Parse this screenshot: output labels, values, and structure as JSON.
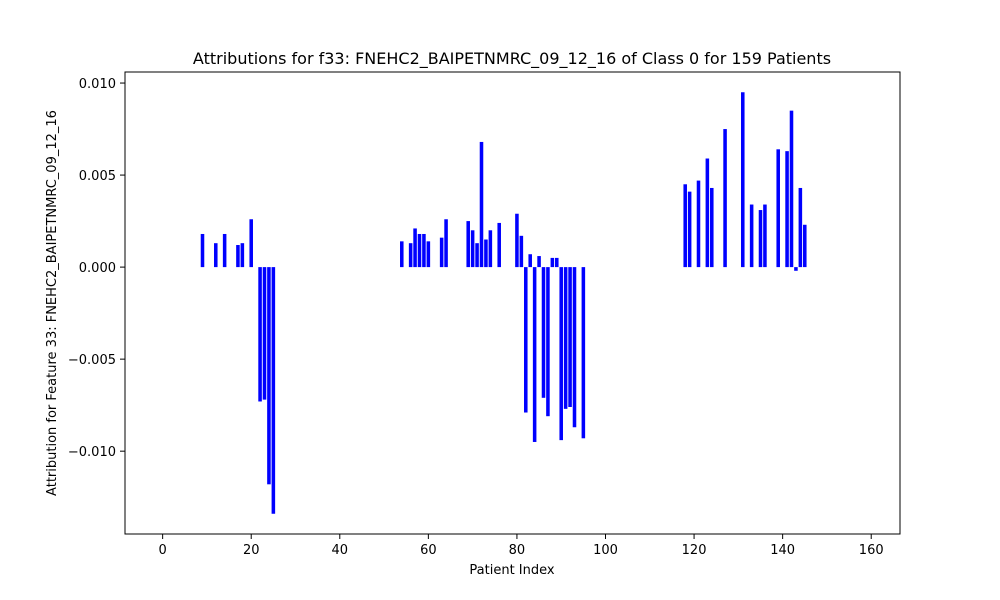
{
  "chart_data": {
    "type": "bar",
    "title": "Attributions for f33: FNEHC2_BAIPETNMRC_09_12_16 of Class 0 for 159 Patients",
    "xlabel": "Patient Index",
    "ylabel": "Attribution for Feature 33: FNEHC2_BAIPETNMRC_09_12_16",
    "xlim": [
      -8.5,
      166.5
    ],
    "ylim": [
      -0.0145,
      0.0106
    ],
    "xticks": [
      0,
      20,
      40,
      60,
      80,
      100,
      120,
      140,
      160
    ],
    "yticks": [
      -0.01,
      -0.005,
      0.0,
      0.005,
      0.01
    ],
    "ytick_labels": [
      "−0.010",
      "−0.005",
      "0.000",
      "0.005",
      "0.010"
    ],
    "grid": false,
    "bar_color": "#0000ff",
    "x": [
      9,
      12,
      14,
      17,
      18,
      20,
      22,
      23,
      24,
      25,
      54,
      56,
      57,
      58,
      59,
      60,
      63,
      64,
      69,
      70,
      71,
      72,
      73,
      74,
      76,
      80,
      81,
      82,
      83,
      84,
      85,
      86,
      87,
      88,
      89,
      90,
      91,
      92,
      93,
      95,
      118,
      119,
      121,
      123,
      124,
      127,
      131,
      133,
      135,
      136,
      139,
      141,
      142,
      143,
      144,
      145
    ],
    "values": [
      0.0018,
      0.0013,
      0.0018,
      0.0012,
      0.0013,
      0.0026,
      -0.0073,
      -0.0072,
      -0.0118,
      -0.0134,
      0.0014,
      0.0013,
      0.0021,
      0.0018,
      0.0018,
      0.0014,
      0.0016,
      0.0026,
      0.0025,
      0.002,
      0.0013,
      0.0068,
      0.0015,
      0.002,
      0.0024,
      0.0029,
      0.0017,
      -0.0079,
      0.0007,
      -0.0095,
      0.0006,
      -0.0071,
      -0.0081,
      0.0005,
      0.0005,
      -0.0094,
      -0.0077,
      -0.0076,
      -0.0087,
      -0.0093,
      0.0045,
      0.0041,
      0.0047,
      0.0059,
      0.0043,
      0.0075,
      0.0095,
      0.0034,
      0.0031,
      0.0034,
      0.0064,
      0.0063,
      0.0085,
      -0.0002,
      0.0043,
      0.0023
    ]
  }
}
